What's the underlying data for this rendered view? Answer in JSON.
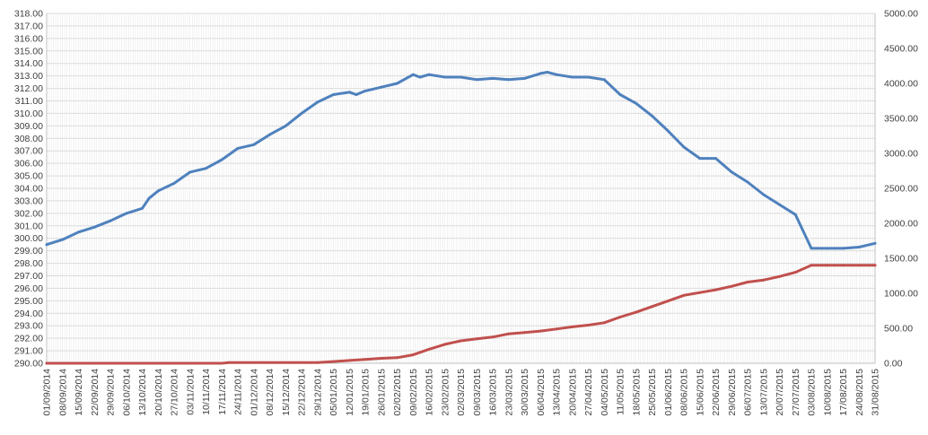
{
  "chart_data": {
    "type": "line",
    "title": "",
    "xlabel": "",
    "ylabel": "",
    "y2label": "",
    "grid": true,
    "legend": "none",
    "ylim": [
      290,
      318
    ],
    "y2lim": [
      0,
      5000
    ],
    "x_ticks": [
      "01/09/2014",
      "08/09/2014",
      "15/09/2014",
      "22/09/2014",
      "29/09/2014",
      "06/10/2014",
      "13/10/2014",
      "20/10/2014",
      "27/10/2014",
      "03/11/2014",
      "10/11/2014",
      "17/11/2014",
      "24/11/2014",
      "01/12/2014",
      "08/12/2014",
      "15/12/2014",
      "22/12/2014",
      "29/12/2014",
      "05/01/2015",
      "12/01/2015",
      "19/01/2015",
      "26/01/2015",
      "02/02/2015",
      "09/02/2015",
      "16/02/2015",
      "23/02/2015",
      "02/03/2015",
      "09/03/2015",
      "16/03/2015",
      "23/03/2015",
      "30/03/2015",
      "06/04/2015",
      "13/04/2015",
      "20/04/2015",
      "27/04/2015",
      "04/05/2015",
      "11/05/2015",
      "18/05/2015",
      "25/05/2015",
      "01/06/2015",
      "08/06/2015",
      "15/06/2015",
      "22/06/2015",
      "29/06/2015",
      "06/07/2015",
      "13/07/2015",
      "20/07/2015",
      "27/07/2015",
      "03/08/2015",
      "10/08/2015",
      "17/08/2015",
      "24/08/2015",
      "31/08/2015"
    ],
    "y_ticks": [
      "290.00",
      "291.00",
      "292.00",
      "293.00",
      "294.00",
      "295.00",
      "296.00",
      "297.00",
      "298.00",
      "299.00",
      "300.00",
      "301.00",
      "302.00",
      "303.00",
      "304.00",
      "305.00",
      "306.00",
      "307.00",
      "308.00",
      "309.00",
      "310.00",
      "311.00",
      "312.00",
      "313.00",
      "314.00",
      "315.00",
      "316.00",
      "317.00",
      "318.00"
    ],
    "y2_ticks": [
      "0.00",
      "500.00",
      "1000.00",
      "1500.00",
      "2000.00",
      "2500.00",
      "3000.00",
      "3500.00",
      "4000.00",
      "4500.00",
      "5000.00"
    ],
    "series": [
      {
        "axis": "left",
        "color": "#4f81bd",
        "points": [
          [
            "01/09/2014",
            299.5
          ],
          [
            "08/09/2014",
            299.9
          ],
          [
            "15/09/2014",
            300.5
          ],
          [
            "22/09/2014",
            300.9
          ],
          [
            "29/09/2014",
            301.4
          ],
          [
            "06/10/2014",
            302.0
          ],
          [
            "13/10/2014",
            302.4
          ],
          [
            "16/10/2014",
            303.2
          ],
          [
            "20/10/2014",
            303.8
          ],
          [
            "27/10/2014",
            304.4
          ],
          [
            "03/11/2014",
            305.3
          ],
          [
            "10/11/2014",
            305.6
          ],
          [
            "17/11/2014",
            306.3
          ],
          [
            "24/11/2014",
            307.2
          ],
          [
            "01/12/2014",
            307.5
          ],
          [
            "08/12/2014",
            308.3
          ],
          [
            "15/12/2014",
            309.0
          ],
          [
            "22/12/2014",
            310.0
          ],
          [
            "29/12/2014",
            310.9
          ],
          [
            "05/01/2015",
            311.5
          ],
          [
            "12/01/2015",
            311.7
          ],
          [
            "15/01/2015",
            311.5
          ],
          [
            "19/01/2015",
            311.8
          ],
          [
            "26/01/2015",
            312.1
          ],
          [
            "02/02/2015",
            312.4
          ],
          [
            "09/02/2015",
            313.1
          ],
          [
            "12/02/2015",
            312.9
          ],
          [
            "16/02/2015",
            313.1
          ],
          [
            "23/02/2015",
            312.9
          ],
          [
            "02/03/2015",
            312.9
          ],
          [
            "09/03/2015",
            312.7
          ],
          [
            "16/03/2015",
            312.8
          ],
          [
            "23/03/2015",
            312.7
          ],
          [
            "30/03/2015",
            312.8
          ],
          [
            "06/04/2015",
            313.2
          ],
          [
            "09/04/2015",
            313.3
          ],
          [
            "13/04/2015",
            313.1
          ],
          [
            "20/04/2015",
            312.9
          ],
          [
            "27/04/2015",
            312.9
          ],
          [
            "04/05/2015",
            312.7
          ],
          [
            "11/05/2015",
            311.5
          ],
          [
            "18/05/2015",
            310.8
          ],
          [
            "25/05/2015",
            309.8
          ],
          [
            "01/06/2015",
            308.6
          ],
          [
            "08/06/2015",
            307.3
          ],
          [
            "15/06/2015",
            306.4
          ],
          [
            "22/06/2015",
            306.4
          ],
          [
            "29/06/2015",
            305.3
          ],
          [
            "06/07/2015",
            304.5
          ],
          [
            "13/07/2015",
            303.5
          ],
          [
            "20/07/2015",
            302.7
          ],
          [
            "27/07/2015",
            301.9
          ],
          [
            "03/08/2015",
            299.2
          ],
          [
            "10/08/2015",
            299.2
          ],
          [
            "17/08/2015",
            299.2
          ],
          [
            "24/08/2015",
            299.3
          ],
          [
            "31/08/2015",
            299.6
          ]
        ]
      },
      {
        "axis": "right",
        "color": "#c0504d",
        "points": [
          [
            "01/09/2014",
            0
          ],
          [
            "17/11/2014",
            0
          ],
          [
            "20/11/2014",
            10
          ],
          [
            "29/12/2014",
            10
          ],
          [
            "05/01/2015",
            25
          ],
          [
            "12/01/2015",
            40
          ],
          [
            "19/01/2015",
            55
          ],
          [
            "26/01/2015",
            70
          ],
          [
            "02/02/2015",
            80
          ],
          [
            "09/02/2015",
            120
          ],
          [
            "16/02/2015",
            200
          ],
          [
            "23/02/2015",
            270
          ],
          [
            "02/03/2015",
            320
          ],
          [
            "09/03/2015",
            350
          ],
          [
            "16/03/2015",
            375
          ],
          [
            "23/03/2015",
            420
          ],
          [
            "30/03/2015",
            440
          ],
          [
            "06/04/2015",
            460
          ],
          [
            "13/04/2015",
            490
          ],
          [
            "20/04/2015",
            520
          ],
          [
            "27/04/2015",
            545
          ],
          [
            "04/05/2015",
            580
          ],
          [
            "11/05/2015",
            660
          ],
          [
            "18/05/2015",
            730
          ],
          [
            "25/05/2015",
            810
          ],
          [
            "01/06/2015",
            890
          ],
          [
            "08/06/2015",
            970
          ],
          [
            "15/06/2015",
            1010
          ],
          [
            "22/06/2015",
            1050
          ],
          [
            "29/06/2015",
            1100
          ],
          [
            "06/07/2015",
            1160
          ],
          [
            "13/07/2015",
            1190
          ],
          [
            "20/07/2015",
            1240
          ],
          [
            "27/07/2015",
            1300
          ],
          [
            "03/08/2015",
            1400
          ],
          [
            "10/08/2015",
            1400
          ],
          [
            "17/08/2015",
            1400
          ],
          [
            "24/08/2015",
            1400
          ],
          [
            "31/08/2015",
            1400
          ]
        ]
      }
    ]
  }
}
